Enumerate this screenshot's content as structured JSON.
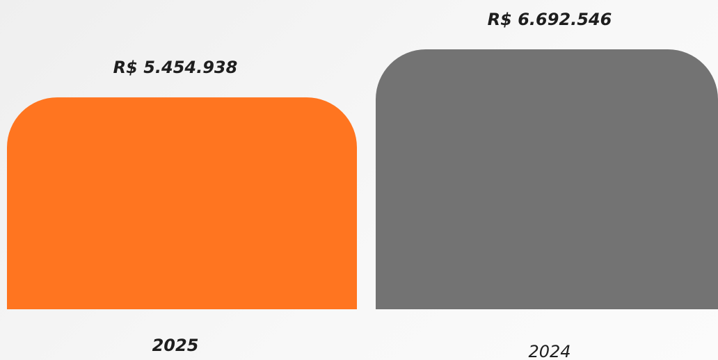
{
  "chart_data": {
    "type": "bar",
    "categories": [
      "2025",
      "2024"
    ],
    "values": [
      5454938,
      6692546
    ],
    "value_labels": [
      "R$ 5.454.938",
      "R$ 6.692.546"
    ],
    "colors": [
      "#ff7520",
      "#737373"
    ]
  }
}
